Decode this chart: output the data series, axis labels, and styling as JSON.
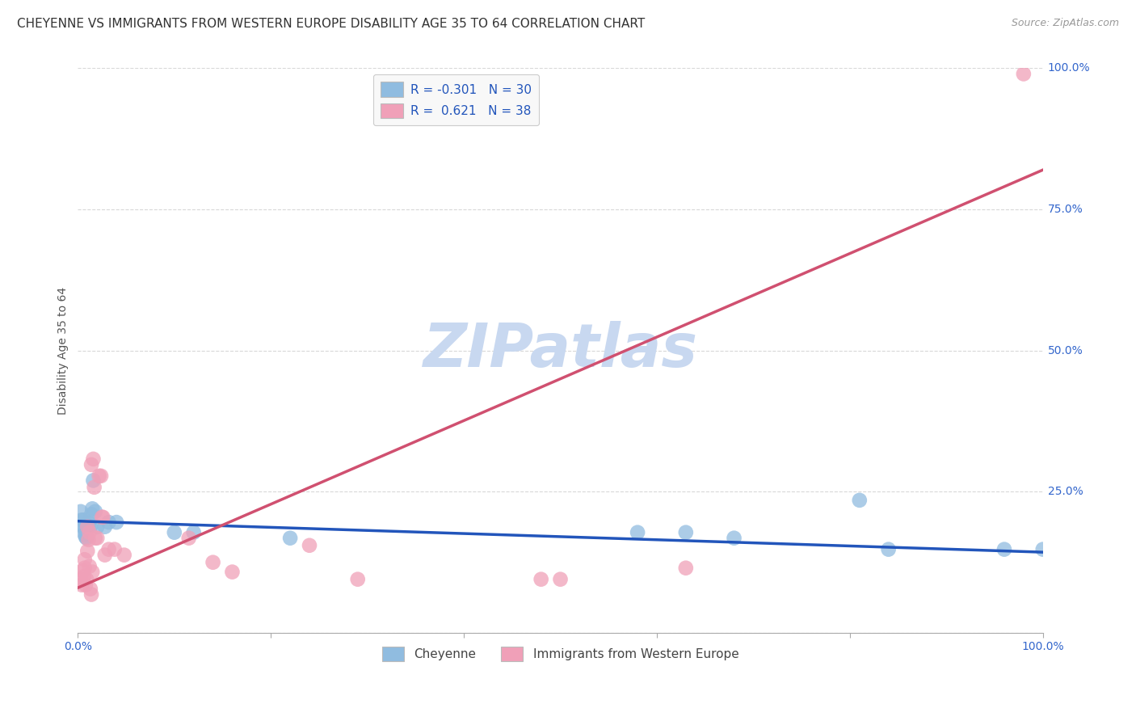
{
  "title": "CHEYENNE VS IMMIGRANTS FROM WESTERN EUROPE DISABILITY AGE 35 TO 64 CORRELATION CHART",
  "source": "Source: ZipAtlas.com",
  "ylabel": "Disability Age 35 to 64",
  "xlim": [
    0.0,
    1.0
  ],
  "ylim": [
    0.0,
    1.0
  ],
  "grid_color": "#d8d8d8",
  "background_color": "#ffffff",
  "watermark": "ZIPatlas",
  "watermark_color": "#c8d8f0",
  "cheyenne_color": "#90bce0",
  "immigrant_color": "#f0a0b8",
  "cheyenne_line_color": "#2255bb",
  "immigrant_line_color": "#d05070",
  "cheyenne_R": -0.301,
  "cheyenne_N": 30,
  "immigrant_R": 0.621,
  "immigrant_N": 38,
  "cheyenne_points": [
    [
      0.003,
      0.215
    ],
    [
      0.004,
      0.2
    ],
    [
      0.005,
      0.19
    ],
    [
      0.006,
      0.2
    ],
    [
      0.007,
      0.185
    ],
    [
      0.007,
      0.175
    ],
    [
      0.008,
      0.18
    ],
    [
      0.008,
      0.17
    ],
    [
      0.009,
      0.168
    ],
    [
      0.01,
      0.188
    ],
    [
      0.011,
      0.195
    ],
    [
      0.013,
      0.188
    ],
    [
      0.014,
      0.21
    ],
    [
      0.015,
      0.22
    ],
    [
      0.016,
      0.27
    ],
    [
      0.018,
      0.215
    ],
    [
      0.02,
      0.188
    ],
    [
      0.028,
      0.188
    ],
    [
      0.032,
      0.196
    ],
    [
      0.04,
      0.196
    ],
    [
      0.1,
      0.178
    ],
    [
      0.12,
      0.178
    ],
    [
      0.22,
      0.168
    ],
    [
      0.58,
      0.178
    ],
    [
      0.63,
      0.178
    ],
    [
      0.68,
      0.168
    ],
    [
      0.81,
      0.235
    ],
    [
      0.84,
      0.148
    ],
    [
      0.96,
      0.148
    ],
    [
      1.0,
      0.148
    ]
  ],
  "immigrant_points": [
    [
      0.003,
      0.095
    ],
    [
      0.004,
      0.085
    ],
    [
      0.005,
      0.11
    ],
    [
      0.006,
      0.1
    ],
    [
      0.007,
      0.13
    ],
    [
      0.007,
      0.115
    ],
    [
      0.008,
      0.085
    ],
    [
      0.009,
      0.095
    ],
    [
      0.01,
      0.145
    ],
    [
      0.01,
      0.188
    ],
    [
      0.011,
      0.165
    ],
    [
      0.012,
      0.178
    ],
    [
      0.012,
      0.118
    ],
    [
      0.013,
      0.078
    ],
    [
      0.014,
      0.298
    ],
    [
      0.014,
      0.068
    ],
    [
      0.015,
      0.108
    ],
    [
      0.016,
      0.308
    ],
    [
      0.017,
      0.258
    ],
    [
      0.018,
      0.168
    ],
    [
      0.02,
      0.168
    ],
    [
      0.022,
      0.278
    ],
    [
      0.024,
      0.278
    ],
    [
      0.025,
      0.205
    ],
    [
      0.026,
      0.205
    ],
    [
      0.028,
      0.138
    ],
    [
      0.032,
      0.148
    ],
    [
      0.038,
      0.148
    ],
    [
      0.048,
      0.138
    ],
    [
      0.115,
      0.168
    ],
    [
      0.14,
      0.125
    ],
    [
      0.16,
      0.108
    ],
    [
      0.24,
      0.155
    ],
    [
      0.29,
      0.095
    ],
    [
      0.48,
      0.095
    ],
    [
      0.63,
      0.115
    ],
    [
      0.98,
      0.99
    ],
    [
      0.5,
      0.095
    ]
  ],
  "legend_box_color": "#f8f8f8",
  "legend_border_color": "#cccccc",
  "title_fontsize": 11,
  "axis_label_fontsize": 10,
  "tick_fontsize": 10,
  "legend_fontsize": 11
}
